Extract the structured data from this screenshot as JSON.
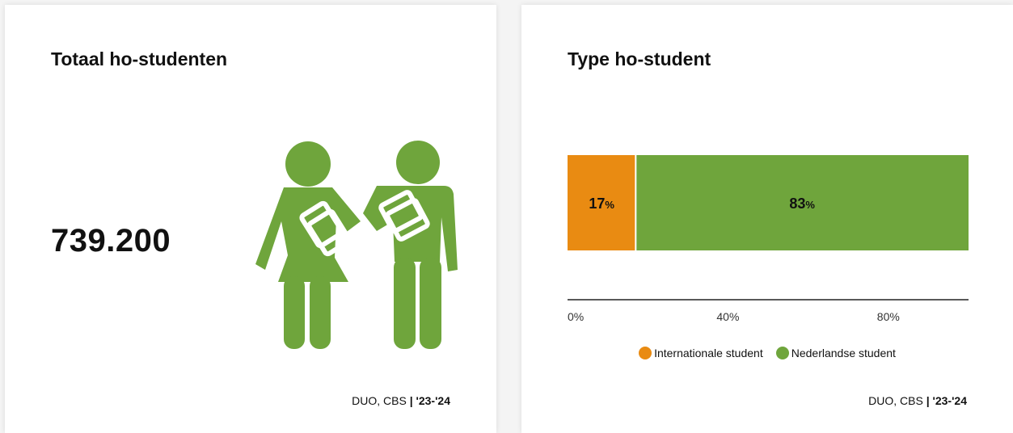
{
  "colors": {
    "green": "#6fa53c",
    "orange": "#e98b12",
    "axis": "#222222"
  },
  "left_card": {
    "title": "Totaal ho-studenten",
    "value": "739.200",
    "icon": "students-icon",
    "source_text": "DUO, CBS",
    "source_sep": "|",
    "source_period": "'23-'24"
  },
  "right_card": {
    "title": "Type ho-student",
    "source_text": "DUO, CBS",
    "source_sep": "|",
    "source_period": "'23-'24"
  },
  "chart_data": {
    "type": "bar",
    "orientation": "horizontal-stacked",
    "title": "Type ho-student",
    "series": [
      {
        "name": "Internationale student",
        "value": 17,
        "color": "#e98b12"
      },
      {
        "name": "Nederlandse student",
        "value": 83,
        "color": "#6fa53c"
      }
    ],
    "value_suffix": "%",
    "xlim": [
      0,
      100
    ],
    "x_ticks": [
      0,
      40,
      80
    ],
    "x_tick_labels": [
      "0%",
      "40%",
      "80%"
    ],
    "legend_position": "bottom",
    "grid": false
  }
}
